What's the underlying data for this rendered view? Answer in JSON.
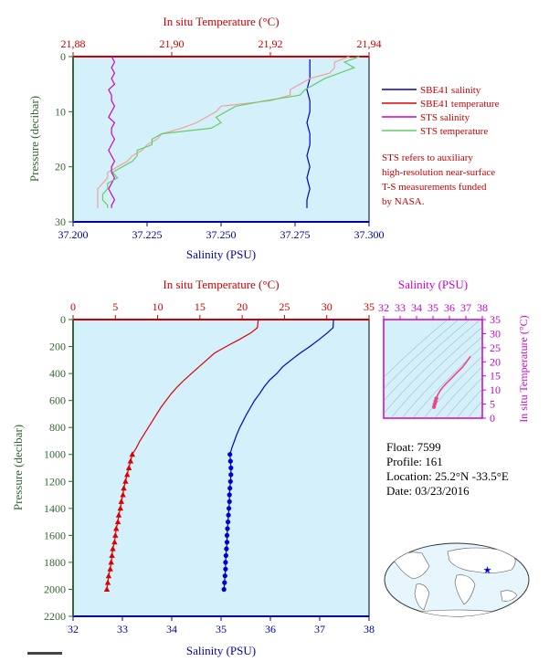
{
  "chart_data": [
    {
      "id": "upper-profile",
      "type": "line",
      "title": "",
      "top_axis_label": "In situ Temperature (°C)",
      "bottom_axis_label": "Salinity (PSU)",
      "ylabel": "Pressure (decibar)",
      "temp_range": [
        21.88,
        21.94
      ],
      "temp_ticks": [
        "21,88",
        "21,90",
        "21,92",
        "21,94"
      ],
      "sal_range": [
        37.2,
        37.3
      ],
      "sal_ticks": [
        "37.200",
        "37.225",
        "37.250",
        "37.275",
        "37.300"
      ],
      "p_range": [
        0,
        30
      ],
      "p_ticks": [
        "0",
        "10",
        "20",
        "30"
      ],
      "legend": [
        "SBE41 salinity",
        "SBE41 temperature",
        "STS salinity",
        "STS temperature"
      ],
      "series": [
        {
          "color": "#0000cc",
          "axis": "sal",
          "p": [
            0.5,
            2,
            4,
            6,
            8,
            10,
            12,
            14,
            16,
            18,
            20,
            22,
            24,
            26,
            27.5
          ],
          "x": [
            37.28,
            37.28,
            37.28,
            37.279,
            37.28,
            37.28,
            37.279,
            37.28,
            37.28,
            37.279,
            37.28,
            37.279,
            37.28,
            37.279,
            37.279
          ]
        },
        {
          "color": "#f0a0a0",
          "axis": "temp",
          "p": [
            0,
            1,
            2,
            3,
            4,
            5,
            6,
            7,
            8,
            9,
            10,
            11,
            12,
            13,
            14,
            15,
            16,
            17,
            18,
            19,
            20,
            21,
            22,
            23,
            24,
            25,
            26,
            27,
            27.5
          ],
          "x": [
            21.936,
            21.933,
            21.933,
            21.932,
            21.928,
            21.926,
            21.924,
            21.924,
            21.92,
            21.91,
            21.909,
            21.907,
            21.905,
            21.902,
            21.898,
            21.897,
            21.895,
            21.894,
            21.892,
            21.891,
            21.889,
            21.887,
            21.887,
            21.886,
            21.885,
            21.885,
            21.885,
            21.885,
            21.885
          ]
        },
        {
          "color": "#cc00cc",
          "axis": "sal",
          "p": [
            0,
            1,
            2,
            3,
            4,
            5,
            6,
            7,
            8,
            9,
            10,
            11,
            12,
            13,
            14,
            15,
            16,
            17,
            18,
            19,
            20,
            21,
            22,
            23,
            24,
            25,
            26,
            27,
            27.5
          ],
          "x": [
            37.213,
            37.214,
            37.213,
            37.214,
            37.213,
            37.214,
            37.212,
            37.213,
            37.213,
            37.214,
            37.213,
            37.212,
            37.214,
            37.213,
            37.213,
            37.214,
            37.213,
            37.212,
            37.213,
            37.214,
            37.213,
            37.213,
            37.214,
            37.213,
            37.212,
            37.213,
            37.214,
            37.213,
            37.213
          ]
        },
        {
          "color": "#66cc66",
          "axis": "temp",
          "p": [
            0,
            1,
            2,
            3,
            4,
            5,
            6,
            7,
            8,
            9,
            10,
            11,
            12,
            13,
            14,
            15,
            16,
            17,
            18,
            19,
            20,
            21,
            22,
            23,
            24,
            25,
            26,
            27,
            27.5
          ],
          "x": [
            21.938,
            21.935,
            21.937,
            21.934,
            21.931,
            21.929,
            21.927,
            21.926,
            21.919,
            21.913,
            21.911,
            21.909,
            21.91,
            21.908,
            21.898,
            21.896,
            21.896,
            21.893,
            21.893,
            21.892,
            21.89,
            21.888,
            21.889,
            21.887,
            21.887,
            21.886,
            21.886,
            21.887,
            21.887
          ]
        }
      ]
    },
    {
      "id": "main-profile",
      "type": "line",
      "title": "",
      "top_axis_label": "In situ Temperature (°C)",
      "bottom_axis_label": "Salinity (PSU)",
      "ylabel": "Pressure (decibar)",
      "temp_range": [
        0,
        35
      ],
      "temp_ticks": [
        "0",
        "5",
        "10",
        "15",
        "20",
        "25",
        "30",
        "35"
      ],
      "sal_range": [
        32,
        38
      ],
      "sal_ticks": [
        "32",
        "33",
        "34",
        "35",
        "36",
        "37",
        "38"
      ],
      "p_range": [
        0,
        2200
      ],
      "p_ticks": [
        "0",
        "200",
        "400",
        "600",
        "800",
        "1000",
        "1200",
        "1400",
        "1600",
        "1800",
        "2000",
        "2200"
      ],
      "temperature": {
        "color": "#dd0000",
        "p": [
          0,
          60,
          100,
          150,
          200,
          250,
          300,
          350,
          400,
          450,
          500,
          550,
          600,
          650,
          700,
          750,
          800,
          850,
          900,
          950,
          1000
        ],
        "t": [
          21.9,
          21.8,
          21.0,
          19.6,
          18.1,
          16.7,
          15.8,
          14.9,
          14.0,
          13.1,
          12.3,
          11.6,
          11.0,
          10.4,
          9.9,
          9.4,
          8.9,
          8.4,
          7.9,
          7.5,
          7.0
        ],
        "markers_p": [
          1000,
          1050,
          1100,
          1150,
          1200,
          1250,
          1300,
          1350,
          1400,
          1450,
          1500,
          1550,
          1600,
          1650,
          1700,
          1750,
          1800,
          1850,
          1900,
          1950,
          2000
        ],
        "markers_t": [
          7.0,
          6.8,
          6.6,
          6.4,
          6.2,
          6.0,
          5.9,
          5.7,
          5.6,
          5.4,
          5.3,
          5.1,
          5.0,
          4.9,
          4.7,
          4.6,
          4.5,
          4.4,
          4.2,
          4.1,
          4.0
        ]
      },
      "salinity": {
        "color": "#0000cc",
        "p": [
          0,
          60,
          100,
          150,
          200,
          250,
          300,
          350,
          400,
          450,
          500,
          550,
          600,
          650,
          700,
          750,
          800,
          850,
          900,
          950,
          1000
        ],
        "s": [
          37.28,
          37.27,
          37.15,
          36.98,
          36.8,
          36.6,
          36.42,
          36.25,
          36.13,
          35.98,
          35.87,
          35.78,
          35.68,
          35.6,
          35.52,
          35.45,
          35.38,
          35.32,
          35.27,
          35.22,
          35.18
        ],
        "markers_p": [
          1000,
          1050,
          1100,
          1150,
          1200,
          1250,
          1300,
          1350,
          1400,
          1450,
          1500,
          1550,
          1600,
          1650,
          1700,
          1750,
          1800,
          1850,
          1900,
          1950,
          2000
        ],
        "markers_s": [
          35.18,
          35.19,
          35.2,
          35.2,
          35.19,
          35.18,
          35.17,
          35.17,
          35.16,
          35.15,
          35.14,
          35.13,
          35.12,
          35.12,
          35.11,
          35.1,
          35.09,
          35.09,
          35.08,
          35.07,
          35.06
        ]
      }
    },
    {
      "id": "ts-diagram",
      "type": "line",
      "title": "",
      "top_axis_label": "Salinity (PSU)",
      "right_axis_label": "In situ Temperature (°C)",
      "sal_range": [
        32,
        38
      ],
      "sal_ticks": [
        "32",
        "33",
        "34",
        "35",
        "36",
        "37",
        "38"
      ],
      "temp_range": [
        0,
        35
      ],
      "temp_ticks": [
        "0",
        "5",
        "10",
        "15",
        "20",
        "25",
        "30",
        "35"
      ],
      "color": "#ee4488",
      "s": [
        37.28,
        36.8,
        36.4,
        36.1,
        35.8,
        35.6,
        35.45,
        35.3,
        35.2,
        35.15,
        35.1,
        35.06
      ],
      "t": [
        21.9,
        18.1,
        15.8,
        14.0,
        12.3,
        11.0,
        9.9,
        8.4,
        7.0,
        6.0,
        5.0,
        4.0
      ]
    }
  ],
  "float_info": {
    "float": "Float:  7599",
    "profile": "Profile:  161",
    "location": "Location:  25.2°N  -33.5°E",
    "date": "Date:  03/23/2016"
  },
  "note": "STS refers to auxiliary\nhigh-resolution near-surface\nT-S measurements funded\nby NASA.",
  "map": {
    "marker_lon": -33.5,
    "marker_lat": 25.2,
    "marker_color": "#0000ff"
  },
  "colors": {
    "plot_bg": "#d4f1fb",
    "temp_axis": "#cc0000",
    "sal_axis": "#0000aa",
    "pressure_axis": "#336633",
    "ts_axis": "#cc00cc"
  }
}
